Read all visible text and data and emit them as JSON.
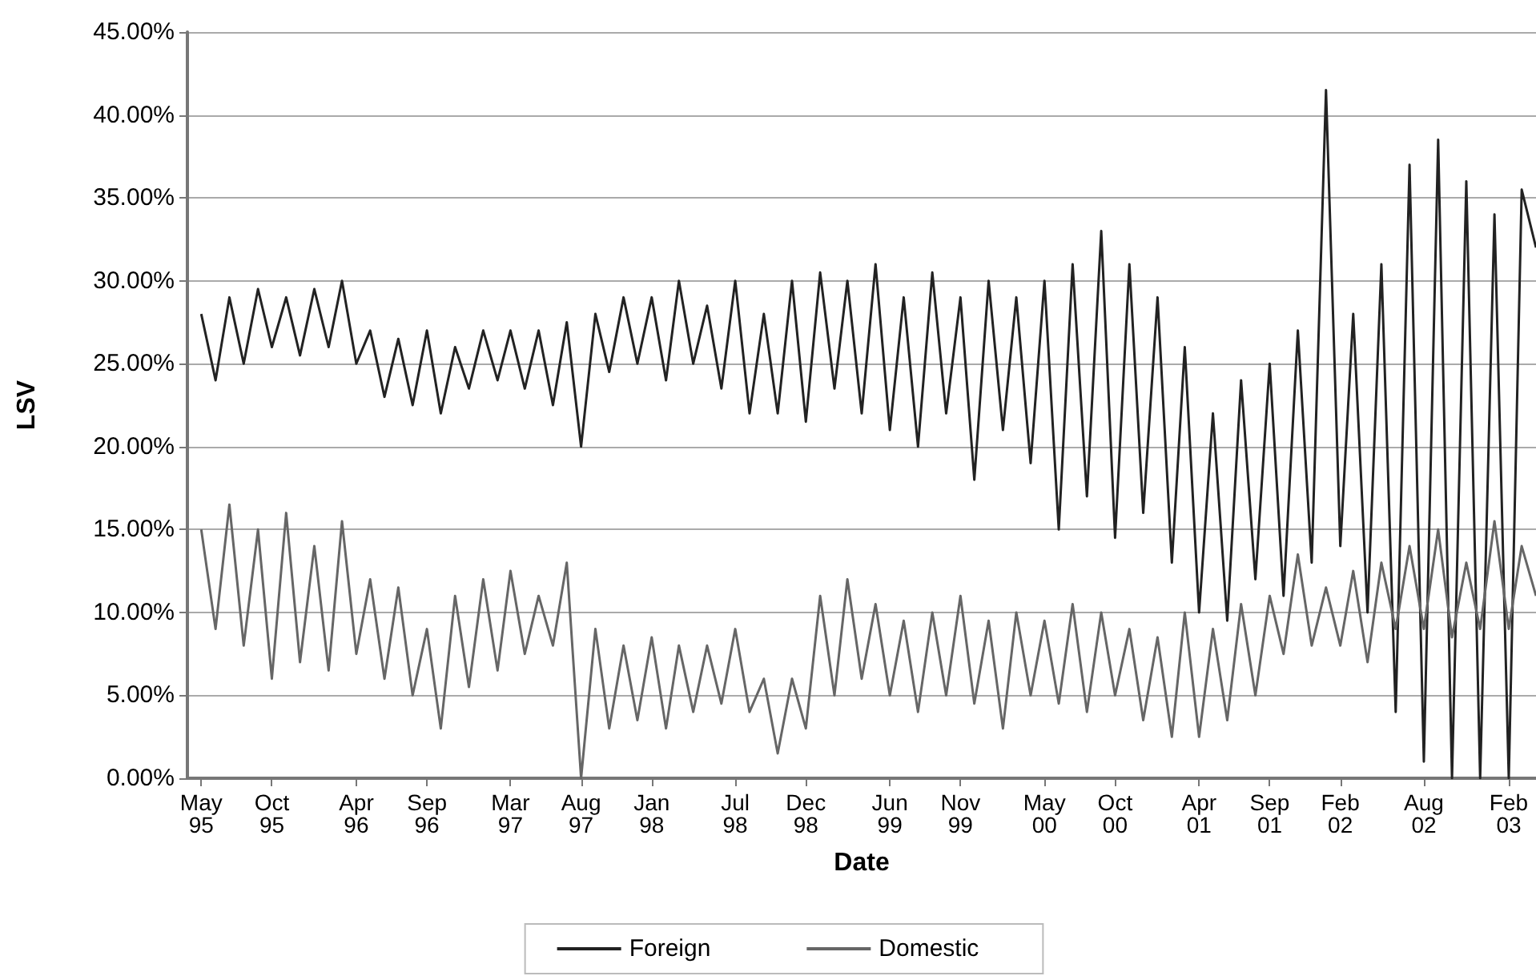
{
  "chart_data": {
    "type": "line",
    "xlabel": "Date",
    "ylabel": "LSV",
    "x": [
      "1995-05",
      "1995-06",
      "1995-07",
      "1995-08",
      "1995-09",
      "1995-10",
      "1995-11",
      "1995-12",
      "1996-01",
      "1996-02",
      "1996-03",
      "1996-04",
      "1996-05",
      "1996-06",
      "1996-07",
      "1996-08",
      "1996-09",
      "1996-10",
      "1996-11",
      "1996-12",
      "1997-01",
      "1997-02",
      "1997-03",
      "1997-04",
      "1997-05",
      "1997-06",
      "1997-07",
      "1997-08",
      "1997-09",
      "1997-10",
      "1997-11",
      "1997-12",
      "1998-01",
      "1998-02",
      "1998-03",
      "1998-04",
      "1998-05",
      "1998-06",
      "1998-07",
      "1998-08",
      "1998-09",
      "1998-10",
      "1998-11",
      "1998-12",
      "1999-01",
      "1999-02",
      "1999-03",
      "1999-04",
      "1999-05",
      "1999-06",
      "1999-07",
      "1999-08",
      "1999-09",
      "1999-10",
      "1999-11",
      "1999-12",
      "2000-01",
      "2000-02",
      "2000-03",
      "2000-04",
      "2000-05",
      "2000-06",
      "2000-07",
      "2000-08",
      "2000-09",
      "2000-10",
      "2000-11",
      "2000-12",
      "2001-01",
      "2001-02",
      "2001-03",
      "2001-04",
      "2001-05",
      "2001-06",
      "2001-07",
      "2001-08",
      "2001-09",
      "2001-10",
      "2001-11",
      "2001-12",
      "2002-01",
      "2002-02",
      "2002-03",
      "2002-04",
      "2002-05",
      "2002-06",
      "2002-07",
      "2002-08",
      "2002-09",
      "2002-10",
      "2002-11",
      "2002-12",
      "2003-01",
      "2003-02",
      "2003-03",
      "2003-04"
    ],
    "series": [
      {
        "name": "Foreign",
        "color": "#222222",
        "values": [
          28,
          24,
          29,
          25,
          29.5,
          26,
          29,
          25.5,
          29.5,
          26,
          30,
          25,
          27,
          23,
          26.5,
          22.5,
          27,
          22,
          26,
          23.5,
          27,
          24,
          27,
          23.5,
          27,
          22.5,
          27.5,
          20,
          28,
          24.5,
          29,
          25,
          29,
          24,
          30,
          25,
          28.5,
          23.5,
          30,
          22,
          28,
          22,
          30,
          21.5,
          30.5,
          23.5,
          30,
          22,
          31,
          21,
          29,
          20,
          30.5,
          22,
          29,
          18,
          30,
          21,
          29,
          19,
          30,
          15,
          31,
          17,
          33,
          14.5,
          31,
          16,
          29,
          13,
          26,
          10,
          22,
          9.5,
          24,
          12,
          25,
          11,
          27,
          13,
          41.5,
          14,
          28,
          10,
          31,
          4,
          37,
          1,
          38.5,
          0,
          36,
          0,
          34,
          0,
          35.5,
          32
        ]
      },
      {
        "name": "Domestic",
        "color": "#666666",
        "values": [
          15,
          9,
          16.5,
          8,
          15,
          6,
          16,
          7,
          14,
          6.5,
          15.5,
          7.5,
          12,
          6,
          11.5,
          5,
          9,
          3,
          11,
          5.5,
          12,
          6.5,
          12.5,
          7.5,
          11,
          8,
          13,
          0,
          9,
          3,
          8,
          3.5,
          8.5,
          3,
          8,
          4,
          8,
          4.5,
          9,
          4,
          6,
          1.5,
          6,
          3,
          11,
          5,
          12,
          6,
          10.5,
          5,
          9.5,
          4,
          10,
          5,
          11,
          4.5,
          9.5,
          3,
          10,
          5,
          9.5,
          4.5,
          10.5,
          4,
          10,
          5,
          9,
          3.5,
          8.5,
          2.5,
          10,
          2.5,
          9,
          3.5,
          10.5,
          5,
          11,
          7.5,
          13.5,
          8,
          11.5,
          8,
          12.5,
          7,
          13,
          9,
          14,
          9,
          15,
          8.5,
          13,
          9,
          15.5,
          9,
          14,
          11
        ]
      }
    ],
    "ylim": [
      0,
      45
    ],
    "yticks": [
      {
        "value": 0,
        "label": "0.00%"
      },
      {
        "value": 5,
        "label": "5.00%"
      },
      {
        "value": 10,
        "label": "10.00%"
      },
      {
        "value": 15,
        "label": "15.00%"
      },
      {
        "value": 20,
        "label": "20.00%"
      },
      {
        "value": 25,
        "label": "25.00%"
      },
      {
        "value": 30,
        "label": "30.00%"
      },
      {
        "value": 35,
        "label": "35.00%"
      },
      {
        "value": 40,
        "label": "40.00%"
      },
      {
        "value": 45,
        "label": "45.00%"
      }
    ],
    "xlim": [
      "1995-04",
      "2003-04"
    ],
    "xticks": [
      {
        "value": "1995-05",
        "label": "May 95"
      },
      {
        "value": "1995-10",
        "label": "Oct 95"
      },
      {
        "value": "1996-04",
        "label": "Apr 96"
      },
      {
        "value": "1996-09",
        "label": "Sep 96"
      },
      {
        "value": "1997-03",
        "label": "Mar 97"
      },
      {
        "value": "1997-08",
        "label": "Aug 97"
      },
      {
        "value": "1998-01",
        "label": "Jan 98"
      },
      {
        "value": "1998-07",
        "label": "Jul 98"
      },
      {
        "value": "1998-12",
        "label": "Dec 98"
      },
      {
        "value": "1999-06",
        "label": "Jun 99"
      },
      {
        "value": "1999-11",
        "label": "Nov 99"
      },
      {
        "value": "2000-05",
        "label": "May 00"
      },
      {
        "value": "2000-10",
        "label": "Oct 00"
      },
      {
        "value": "2001-04",
        "label": "Apr 01"
      },
      {
        "value": "2001-09",
        "label": "Sep 01"
      },
      {
        "value": "2002-02",
        "label": "Feb 02"
      },
      {
        "value": "2002-08",
        "label": "Aug 02"
      },
      {
        "value": "2003-02",
        "label": "Feb 03"
      }
    ],
    "grid": "y",
    "legend": "bottom",
    "marker": "none",
    "line_style": "solid"
  }
}
